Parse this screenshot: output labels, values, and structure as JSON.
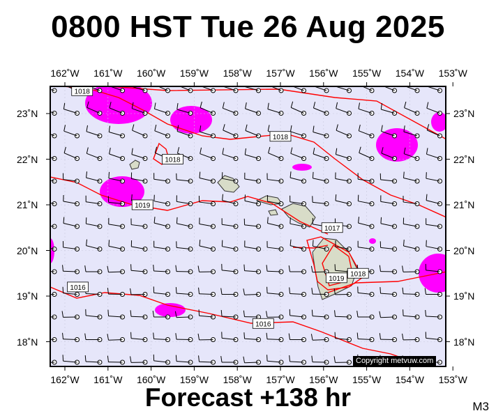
{
  "title": "0800 HST Tue 26 Aug 2025",
  "footer": "Forecast +138 hr",
  "model": "M3",
  "copyright": "Copyright metvuw.com",
  "colors": {
    "ocean": "#e6e6fa",
    "rain": "#ff00ff",
    "isobar": "#ff0000",
    "land": "#d8dcc8",
    "frame": "#000000"
  },
  "lon_labels": [
    "162˚W",
    "161˚W",
    "160˚W",
    "159˚W",
    "158˚W",
    "157˚W",
    "156˚W",
    "155˚W",
    "154˚W",
    "153˚W"
  ],
  "lat_labels": [
    "23˚N",
    "22˚N",
    "21˚N",
    "20˚N",
    "19˚N",
    "18˚N"
  ],
  "isobars": [
    {
      "label": "1018",
      "lon_label_at": -161.6,
      "lat_label_at": 23.5
    },
    {
      "label": "1018",
      "lon_label_at": -159.5,
      "lat_label_at": 22.0
    },
    {
      "label": "1018",
      "lon_label_at": -157.0,
      "lat_label_at": 22.5
    },
    {
      "label": "1019",
      "lon_label_at": -160.2,
      "lat_label_at": 21.0
    },
    {
      "label": "1017",
      "lon_label_at": -155.8,
      "lat_label_at": 20.5
    },
    {
      "label": "1019",
      "lon_label_at": -155.7,
      "lat_label_at": 19.4
    },
    {
      "label": "1018",
      "lon_label_at": -155.2,
      "lat_label_at": 19.5
    },
    {
      "label": "1016",
      "lon_label_at": -161.7,
      "lat_label_at": 19.2
    },
    {
      "label": "1016",
      "lon_label_at": -157.4,
      "lat_label_at": 18.4
    }
  ],
  "islands": [
    "Kauai",
    "Oahu",
    "Molokai",
    "Lanai",
    "Maui",
    "Hawaii"
  ]
}
